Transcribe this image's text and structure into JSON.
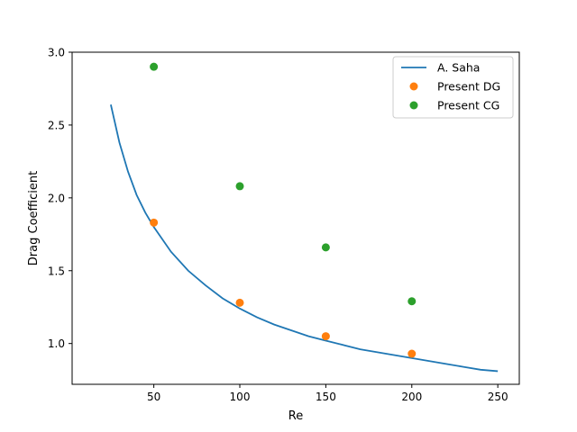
{
  "chart_data": {
    "type": "line",
    "title": "",
    "xlabel": "Re",
    "ylabel": "Drag Coefficient",
    "xlim": [
      2.5,
      262.5
    ],
    "ylim": [
      0.72,
      3.0
    ],
    "xticks": [
      50,
      100,
      150,
      200,
      250
    ],
    "yticks": [
      1.0,
      1.5,
      2.0,
      2.5,
      3.0
    ],
    "xtick_labels": [
      "50",
      "100",
      "150",
      "200",
      "250"
    ],
    "ytick_labels": [
      "1.0",
      "1.5",
      "2.0",
      "2.5",
      "3.0"
    ],
    "grid": false,
    "legend_position": "top-right",
    "series": [
      {
        "name": "A. Saha",
        "kind": "line",
        "color": "#1f77b4",
        "x": [
          25,
          30,
          35,
          40,
          45,
          50,
          60,
          70,
          80,
          90,
          100,
          110,
          120,
          130,
          140,
          150,
          160,
          170,
          180,
          190,
          200,
          210,
          220,
          230,
          240,
          250
        ],
        "y": [
          2.64,
          2.38,
          2.18,
          2.02,
          1.9,
          1.8,
          1.63,
          1.5,
          1.4,
          1.31,
          1.24,
          1.18,
          1.13,
          1.09,
          1.05,
          1.02,
          0.99,
          0.96,
          0.94,
          0.92,
          0.9,
          0.88,
          0.86,
          0.84,
          0.82,
          0.81
        ]
      },
      {
        "name": "Present DG",
        "kind": "scatter",
        "color": "#ff7f0e",
        "x": [
          50,
          100,
          150,
          200
        ],
        "y": [
          1.83,
          1.28,
          1.05,
          0.93
        ]
      },
      {
        "name": "Present CG",
        "kind": "scatter",
        "color": "#2ca02c",
        "x": [
          50,
          100,
          150,
          200
        ],
        "y": [
          2.9,
          2.08,
          1.66,
          1.29
        ]
      }
    ]
  }
}
